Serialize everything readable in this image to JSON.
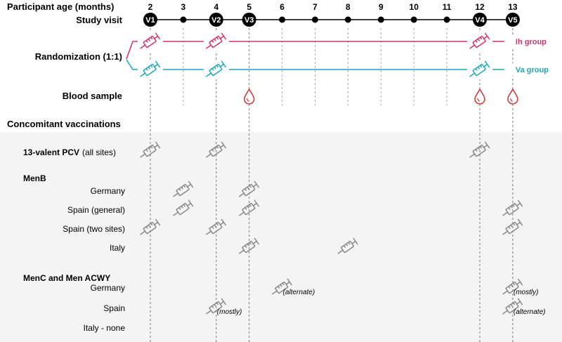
{
  "header": {
    "age_label": "Participant age (months)",
    "visit_label": "Study visit"
  },
  "ages": [
    "2",
    "3",
    "4",
    "5",
    "6",
    "7",
    "8",
    "9",
    "10",
    "11",
    "12",
    "13"
  ],
  "visits": [
    {
      "age": "2",
      "label": "V1"
    },
    {
      "age": "4",
      "label": "V2"
    },
    {
      "age": "5",
      "label": "V3"
    },
    {
      "age": "12",
      "label": "V4"
    },
    {
      "age": "13",
      "label": "V5"
    }
  ],
  "randomization": {
    "label": "Randomization (1:1)",
    "groups": [
      {
        "name": "Ih group",
        "color": "#d6336c",
        "vaccine_ages": [
          "2",
          "4",
          "12"
        ]
      },
      {
        "name": "Va group",
        "color": "#1aa9bf",
        "vaccine_ages": [
          "2",
          "4",
          "12"
        ]
      }
    ]
  },
  "blood_sample": {
    "label": "Blood sample",
    "ages": [
      "5",
      "12",
      "13"
    ],
    "color": "#d63a3a"
  },
  "concomitant": {
    "label": "Concomitant vaccinations",
    "pcv": {
      "label_bold": "13-valent PCV",
      "label_rest": "(all sites)",
      "ages": [
        "2",
        "4",
        "12"
      ]
    },
    "menb": {
      "label": "MenB",
      "rows": [
        {
          "label": "Germany",
          "ages": [
            "3",
            "5"
          ]
        },
        {
          "label": "Spain (general)",
          "ages": [
            "3",
            "5",
            "13"
          ]
        },
        {
          "label": "Spain (two sites)",
          "ages": [
            "2",
            "4",
            "13"
          ]
        },
        {
          "label": "Italy",
          "ages": [
            "5",
            "8"
          ]
        }
      ]
    },
    "menc": {
      "label": "MenC and Men ACWY",
      "rows": [
        {
          "label": "Germany",
          "marks": [
            {
              "age": "6",
              "note": "(alternate)"
            },
            {
              "age": "13",
              "note": "(mostly)"
            }
          ]
        },
        {
          "label": "Spain",
          "marks": [
            {
              "age": "4",
              "note": "(mostly)"
            },
            {
              "age": "13",
              "note": "(alternate)"
            }
          ]
        },
        {
          "label": "Italy - none",
          "marks": []
        }
      ]
    }
  },
  "colors": {
    "grey_syringe": "#8a8a8a",
    "panel_bg": "#f4f4f4",
    "visit_circle": "#000000"
  }
}
